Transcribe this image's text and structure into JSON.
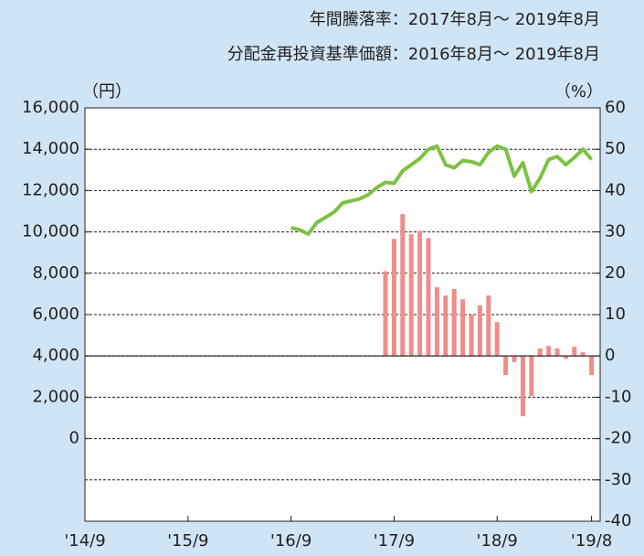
{
  "chart_data": {
    "type": "line",
    "title": "年間騰落率：2017年8月～ 2019年8月",
    "subtitle": "分配金再投資基準価額：2016年8月～ 2019年8月",
    "y_label": "（円）",
    "y2_label": "（%）",
    "xlim": [
      "2014-09",
      "2019-09"
    ],
    "xticks": [
      {
        "value": "2014-09",
        "label": "'14/9"
      },
      {
        "value": "2015-09",
        "label": "'15/9"
      },
      {
        "value": "2016-09",
        "label": "'16/9"
      },
      {
        "value": "2017-09",
        "label": "'17/9"
      },
      {
        "value": "2018-09",
        "label": "'18/9"
      },
      {
        "value": "2019-08",
        "label": "'19/8"
      }
    ],
    "ylim": [
      -4000,
      16000
    ],
    "yticks": [
      {
        "value": 0,
        "label": "0"
      },
      {
        "value": 2000,
        "label": "2,000"
      },
      {
        "value": 4000,
        "label": "4,000"
      },
      {
        "value": 6000,
        "label": "6,000"
      },
      {
        "value": 8000,
        "label": "8,000"
      },
      {
        "value": 10000,
        "label": "10,000"
      },
      {
        "value": 12000,
        "label": "12,000"
      },
      {
        "value": 14000,
        "label": "14,000"
      },
      {
        "value": 16000,
        "label": "16,000"
      }
    ],
    "y2lim": [
      -40,
      60
    ],
    "y2ticks": [
      -40,
      -30,
      -20,
      -10,
      0,
      10,
      20,
      30,
      40,
      50,
      60
    ],
    "grid": true,
    "series": [
      {
        "type": "line",
        "color": "#7cc242",
        "x": [
          "2016-09",
          "2016-10",
          "2016-11",
          "2016-12",
          "2017-01",
          "2017-02",
          "2017-03",
          "2017-04",
          "2017-05",
          "2017-06",
          "2017-07",
          "2017-08",
          "2017-09",
          "2017-10",
          "2017-11",
          "2017-12",
          "2018-01",
          "2018-02",
          "2018-03",
          "2018-04",
          "2018-05",
          "2018-06",
          "2018-07",
          "2018-08",
          "2018-09",
          "2018-10",
          "2018-11",
          "2018-12",
          "2019-01",
          "2019-02",
          "2019-03",
          "2019-04",
          "2019-05",
          "2019-06",
          "2019-07",
          "2019-08"
        ],
        "values": [
          10200,
          10100,
          9900,
          10450,
          10700,
          10950,
          11400,
          11500,
          11600,
          11800,
          12150,
          12400,
          12350,
          12950,
          13250,
          13550,
          14000,
          14150,
          13250,
          13100,
          13450,
          13400,
          13250,
          13850,
          14150,
          14000,
          12700,
          13350,
          11950,
          12600,
          13500,
          13650,
          13250,
          13600,
          14000,
          13500
        ]
      },
      {
        "type": "bar",
        "color": "#f08c8c",
        "axis": "y2",
        "x": [
          "2017-08",
          "2017-09",
          "2017-10",
          "2017-11",
          "2017-12",
          "2018-01",
          "2018-02",
          "2018-03",
          "2018-04",
          "2018-05",
          "2018-06",
          "2018-07",
          "2018-08",
          "2018-09",
          "2018-10",
          "2018-11",
          "2018-12",
          "2019-01",
          "2019-02",
          "2019-03",
          "2019-04",
          "2019-05",
          "2019-06",
          "2019-07",
          "2019-08"
        ],
        "values": [
          20.5,
          28.3,
          34.3,
          29.4,
          30.3,
          28.5,
          16.6,
          14.6,
          16.2,
          13.7,
          10.0,
          12.2,
          14.6,
          8.2,
          -4.6,
          -1.5,
          -14.6,
          -9.7,
          1.8,
          2.4,
          1.8,
          -0.7,
          2.2,
          0.9,
          -4.6
        ]
      }
    ]
  }
}
